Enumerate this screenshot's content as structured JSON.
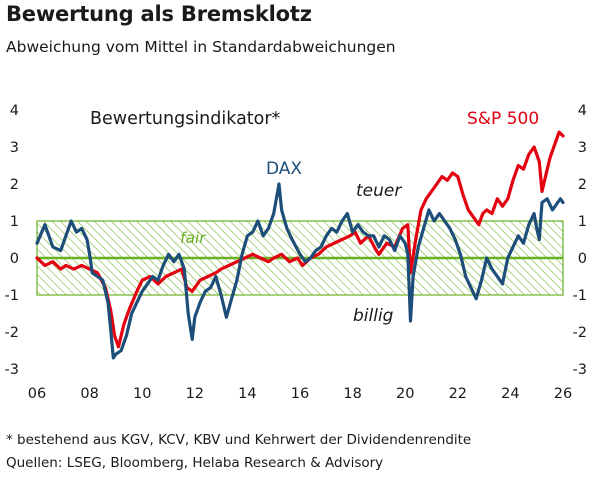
{
  "title": "Bewertung als Bremsklotz",
  "subtitle": "Abweichung vom Mittel in Standardabweichungen",
  "footnotes": [
    "* bestehend aus KGV, KCV, KBV und Kehrwert der Dividendenrendite",
    "Quellen: LSEG, Bloomberg, Helaba Research & Advisory"
  ],
  "colors": {
    "dax": "#1d4e79",
    "sp500": "#e3000f",
    "band": "#6ab023",
    "zero": "#6ab023",
    "annotation": "#1a1a1a"
  },
  "chart_data": {
    "type": "line",
    "title": "Bewertungsindikator*",
    "xlim": [
      2006,
      2026
    ],
    "ylim": [
      -3,
      4
    ],
    "x_ticks": [
      "06",
      "08",
      "10",
      "12",
      "14",
      "16",
      "18",
      "20",
      "22",
      "24",
      "26"
    ],
    "y_ticks": [
      "-3",
      "-2",
      "-1",
      "0",
      "1",
      "2",
      "3",
      "4"
    ],
    "band": {
      "from": -1,
      "to": 1,
      "label": "fair"
    },
    "annotations": {
      "upper": "teuer",
      "lower": "billig"
    },
    "series": [
      {
        "name": "DAX",
        "points": [
          [
            2006.0,
            0.4
          ],
          [
            2006.3,
            0.9
          ],
          [
            2006.6,
            0.3
          ],
          [
            2006.9,
            0.2
          ],
          [
            2007.1,
            0.6
          ],
          [
            2007.3,
            1.0
          ],
          [
            2007.5,
            0.7
          ],
          [
            2007.7,
            0.8
          ],
          [
            2007.9,
            0.5
          ],
          [
            2008.0,
            0.1
          ],
          [
            2008.1,
            -0.4
          ],
          [
            2008.3,
            -0.5
          ],
          [
            2008.5,
            -0.6
          ],
          [
            2008.7,
            -1.2
          ],
          [
            2008.8,
            -1.9
          ],
          [
            2008.9,
            -2.7
          ],
          [
            2009.0,
            -2.6
          ],
          [
            2009.2,
            -2.5
          ],
          [
            2009.4,
            -2.1
          ],
          [
            2009.6,
            -1.5
          ],
          [
            2009.8,
            -1.2
          ],
          [
            2010.0,
            -0.9
          ],
          [
            2010.2,
            -0.7
          ],
          [
            2010.4,
            -0.5
          ],
          [
            2010.6,
            -0.6
          ],
          [
            2010.8,
            -0.2
          ],
          [
            2011.0,
            0.1
          ],
          [
            2011.2,
            -0.1
          ],
          [
            2011.4,
            0.1
          ],
          [
            2011.6,
            -0.3
          ],
          [
            2011.75,
            -1.5
          ],
          [
            2011.9,
            -2.2
          ],
          [
            2012.0,
            -1.6
          ],
          [
            2012.2,
            -1.2
          ],
          [
            2012.4,
            -0.9
          ],
          [
            2012.6,
            -0.8
          ],
          [
            2012.8,
            -0.5
          ],
          [
            2013.0,
            -1.0
          ],
          [
            2013.2,
            -1.6
          ],
          [
            2013.4,
            -1.1
          ],
          [
            2013.6,
            -0.6
          ],
          [
            2013.8,
            0.1
          ],
          [
            2014.0,
            0.6
          ],
          [
            2014.2,
            0.7
          ],
          [
            2014.4,
            1.0
          ],
          [
            2014.6,
            0.6
          ],
          [
            2014.8,
            0.8
          ],
          [
            2015.0,
            1.2
          ],
          [
            2015.2,
            2.0
          ],
          [
            2015.3,
            1.3
          ],
          [
            2015.5,
            0.8
          ],
          [
            2015.7,
            0.5
          ],
          [
            2016.0,
            0.1
          ],
          [
            2016.2,
            -0.1
          ],
          [
            2016.4,
            0.0
          ],
          [
            2016.6,
            0.2
          ],
          [
            2016.8,
            0.3
          ],
          [
            2017.0,
            0.6
          ],
          [
            2017.2,
            0.8
          ],
          [
            2017.4,
            0.7
          ],
          [
            2017.6,
            1.0
          ],
          [
            2017.8,
            1.2
          ],
          [
            2018.0,
            0.7
          ],
          [
            2018.2,
            0.9
          ],
          [
            2018.4,
            0.7
          ],
          [
            2018.6,
            0.6
          ],
          [
            2018.8,
            0.6
          ],
          [
            2019.0,
            0.3
          ],
          [
            2019.2,
            0.6
          ],
          [
            2019.4,
            0.5
          ],
          [
            2019.6,
            0.2
          ],
          [
            2019.8,
            0.6
          ],
          [
            2020.0,
            0.4
          ],
          [
            2020.1,
            0.1
          ],
          [
            2020.2,
            -1.7
          ],
          [
            2020.3,
            -0.5
          ],
          [
            2020.5,
            0.3
          ],
          [
            2020.7,
            0.8
          ],
          [
            2020.9,
            1.3
          ],
          [
            2021.1,
            1.0
          ],
          [
            2021.3,
            1.2
          ],
          [
            2021.5,
            1.0
          ],
          [
            2021.7,
            0.8
          ],
          [
            2021.9,
            0.5
          ],
          [
            2022.1,
            0.1
          ],
          [
            2022.3,
            -0.5
          ],
          [
            2022.5,
            -0.8
          ],
          [
            2022.7,
            -1.1
          ],
          [
            2022.9,
            -0.6
          ],
          [
            2023.1,
            0.0
          ],
          [
            2023.3,
            -0.3
          ],
          [
            2023.5,
            -0.5
          ],
          [
            2023.7,
            -0.7
          ],
          [
            2023.9,
            0.0
          ],
          [
            2024.1,
            0.3
          ],
          [
            2024.3,
            0.6
          ],
          [
            2024.5,
            0.4
          ],
          [
            2024.7,
            0.9
          ],
          [
            2024.9,
            1.2
          ],
          [
            2025.0,
            0.8
          ],
          [
            2025.1,
            0.5
          ],
          [
            2025.2,
            1.5
          ],
          [
            2025.4,
            1.6
          ],
          [
            2025.6,
            1.3
          ],
          [
            2025.8,
            1.5
          ],
          [
            2025.9,
            1.6
          ],
          [
            2026.0,
            1.5
          ]
        ]
      },
      {
        "name": "S&P 500",
        "points": [
          [
            2006.0,
            0.0
          ],
          [
            2006.3,
            -0.2
          ],
          [
            2006.6,
            -0.1
          ],
          [
            2006.9,
            -0.3
          ],
          [
            2007.1,
            -0.2
          ],
          [
            2007.4,
            -0.3
          ],
          [
            2007.7,
            -0.2
          ],
          [
            2008.0,
            -0.3
          ],
          [
            2008.3,
            -0.4
          ],
          [
            2008.6,
            -0.8
          ],
          [
            2008.8,
            -1.4
          ],
          [
            2008.95,
            -2.1
          ],
          [
            2009.1,
            -2.4
          ],
          [
            2009.3,
            -1.8
          ],
          [
            2009.5,
            -1.4
          ],
          [
            2009.8,
            -0.9
          ],
          [
            2010.0,
            -0.6
          ],
          [
            2010.3,
            -0.5
          ],
          [
            2010.6,
            -0.7
          ],
          [
            2010.9,
            -0.5
          ],
          [
            2011.2,
            -0.4
          ],
          [
            2011.5,
            -0.3
          ],
          [
            2011.7,
            -0.8
          ],
          [
            2011.9,
            -0.9
          ],
          [
            2012.2,
            -0.6
          ],
          [
            2012.5,
            -0.5
          ],
          [
            2012.8,
            -0.4
          ],
          [
            2013.0,
            -0.3
          ],
          [
            2013.3,
            -0.2
          ],
          [
            2013.6,
            -0.1
          ],
          [
            2013.9,
            0.0
          ],
          [
            2014.2,
            0.1
          ],
          [
            2014.5,
            0.0
          ],
          [
            2014.8,
            -0.1
          ],
          [
            2015.0,
            0.0
          ],
          [
            2015.3,
            0.1
          ],
          [
            2015.6,
            -0.1
          ],
          [
            2015.9,
            0.0
          ],
          [
            2016.1,
            -0.2
          ],
          [
            2016.4,
            0.0
          ],
          [
            2016.7,
            0.1
          ],
          [
            2017.0,
            0.3
          ],
          [
            2017.3,
            0.4
          ],
          [
            2017.6,
            0.5
          ],
          [
            2017.9,
            0.6
          ],
          [
            2018.1,
            0.7
          ],
          [
            2018.3,
            0.4
          ],
          [
            2018.6,
            0.6
          ],
          [
            2018.9,
            0.2
          ],
          [
            2019.0,
            0.1
          ],
          [
            2019.3,
            0.4
          ],
          [
            2019.6,
            0.3
          ],
          [
            2019.9,
            0.8
          ],
          [
            2020.1,
            0.9
          ],
          [
            2020.2,
            -0.4
          ],
          [
            2020.4,
            0.5
          ],
          [
            2020.6,
            1.3
          ],
          [
            2020.8,
            1.6
          ],
          [
            2021.0,
            1.8
          ],
          [
            2021.2,
            2.0
          ],
          [
            2021.4,
            2.2
          ],
          [
            2021.6,
            2.1
          ],
          [
            2021.8,
            2.3
          ],
          [
            2022.0,
            2.2
          ],
          [
            2022.2,
            1.7
          ],
          [
            2022.4,
            1.3
          ],
          [
            2022.6,
            1.1
          ],
          [
            2022.8,
            0.9
          ],
          [
            2022.95,
            1.2
          ],
          [
            2023.1,
            1.3
          ],
          [
            2023.3,
            1.2
          ],
          [
            2023.5,
            1.6
          ],
          [
            2023.7,
            1.4
          ],
          [
            2023.9,
            1.6
          ],
          [
            2024.1,
            2.1
          ],
          [
            2024.3,
            2.5
          ],
          [
            2024.5,
            2.4
          ],
          [
            2024.7,
            2.8
          ],
          [
            2024.9,
            3.0
          ],
          [
            2025.1,
            2.6
          ],
          [
            2025.2,
            1.8
          ],
          [
            2025.3,
            2.1
          ],
          [
            2025.5,
            2.7
          ],
          [
            2025.7,
            3.1
          ],
          [
            2025.85,
            3.4
          ],
          [
            2026.0,
            3.3
          ]
        ]
      }
    ]
  }
}
